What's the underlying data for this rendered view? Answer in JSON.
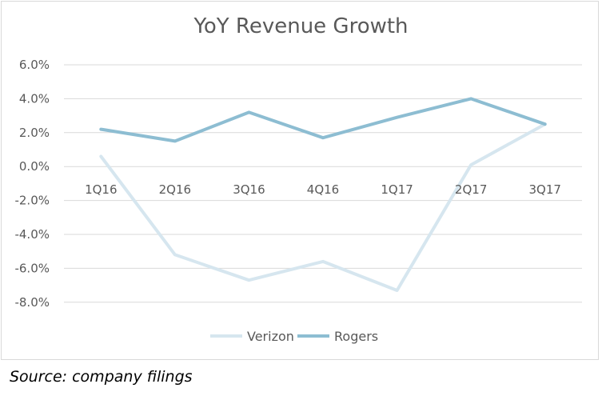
{
  "chart_data": {
    "type": "line",
    "title": "YoY Revenue Growth",
    "categories": [
      "1Q16",
      "2Q16",
      "3Q16",
      "4Q16",
      "1Q17",
      "2Q17",
      "3Q17"
    ],
    "series": [
      {
        "name": "Verizon",
        "values": [
          0.6,
          -5.2,
          -6.7,
          -5.6,
          -7.3,
          0.1,
          2.5
        ],
        "color": "#d6e6ef"
      },
      {
        "name": "Rogers",
        "values": [
          2.2,
          1.5,
          3.2,
          1.7,
          2.9,
          4.0,
          2.5
        ],
        "color": "#8dbdd2"
      }
    ],
    "yticks": [
      "6.0%",
      "4.0%",
      "2.0%",
      "0.0%",
      "-2.0%",
      "-4.0%",
      "-6.0%",
      "-8.0%"
    ],
    "ylim": [
      -8,
      6
    ],
    "grid": true,
    "legend": "bottom",
    "source": "Source: company filings"
  }
}
